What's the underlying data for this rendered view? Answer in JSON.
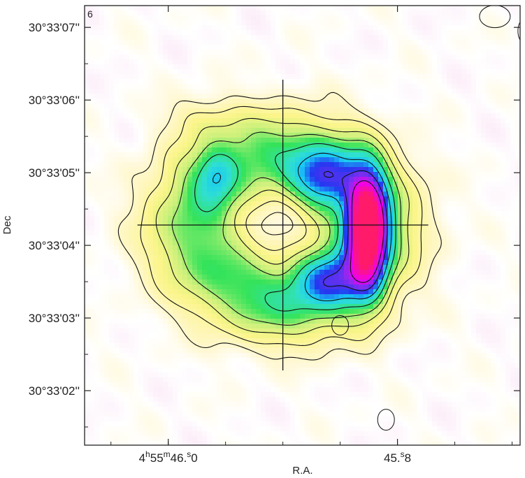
{
  "chart_data": {
    "type": "heatmap",
    "panel_label": "6",
    "xlabel": "R.A.",
    "ylabel": "Dec",
    "x_ticks": [
      {
        "value": 46.0,
        "label_parts": [
          "4",
          "h",
          "55",
          "m",
          "46.",
          "s",
          "0"
        ]
      },
      {
        "value": 45.8,
        "label_parts": [
          "45.",
          "s",
          "8"
        ]
      }
    ],
    "y_ticks": [
      {
        "value": 7,
        "label": "30°33'07''"
      },
      {
        "value": 6,
        "label": "30°33'06''"
      },
      {
        "value": 5,
        "label": "30°33'05''"
      },
      {
        "value": 4,
        "label": "30°33'04''"
      },
      {
        "value": 3,
        "label": "30°33'03''"
      },
      {
        "value": 2,
        "label": "30°33'02''"
      }
    ],
    "ylim_arcsec": [
      1.25,
      7.3
    ],
    "xlim_seconds": [
      46.073,
      45.693
    ],
    "crosshair": {
      "ra_s": 45.9,
      "dec_arcsec": 4.28
    },
    "components": [
      {
        "name": "ring",
        "ra_s": 45.9,
        "dec_arcsec": 4.28,
        "radius_arcsec": 0.97,
        "width_arcsec": 0.42,
        "peak": 0.34
      },
      {
        "name": "east-arc",
        "ra_s": 45.826,
        "dec_arcsec": 4.2,
        "sigma_ra_s": 0.012,
        "sigma_dec_arcsec": 0.55,
        "peak": 0.95
      },
      {
        "name": "arc-north",
        "ra_s": 45.865,
        "dec_arcsec": 4.9,
        "sigma_ra_s": 0.02,
        "sigma_dec_arcsec": 0.3,
        "peak": 0.35
      },
      {
        "name": "arc-south",
        "ra_s": 45.86,
        "dec_arcsec": 3.55,
        "sigma_ra_s": 0.02,
        "sigma_dec_arcsec": 0.25,
        "peak": 0.3
      },
      {
        "name": "west-clump",
        "ra_s": 45.958,
        "dec_arcsec": 4.95,
        "sigma_ra_s": 0.012,
        "sigma_dec_arcsec": 0.25,
        "peak": 0.18
      },
      {
        "name": "north-spur",
        "ra_s": 45.97,
        "dec_arcsec": 5.75,
        "sigma_ra_s": 0.025,
        "sigma_dec_arcsec": 0.22,
        "peak": 0.09
      },
      {
        "name": "south-ext",
        "ra_s": 45.88,
        "dec_arcsec": 2.95,
        "sigma_ra_s": 0.05,
        "sigma_dec_arcsec": 0.3,
        "peak": 0.06
      }
    ],
    "contour_levels": [
      0.06,
      0.12,
      0.2,
      0.28,
      0.38,
      0.5,
      0.65,
      0.8
    ],
    "negative_contour_level": -0.05,
    "colormap": [
      {
        "v": -0.1,
        "c": "#f6c9ec"
      },
      {
        "v": 0.0,
        "c": "#ffffff"
      },
      {
        "v": 0.06,
        "c": "#fff7cc"
      },
      {
        "v": 0.16,
        "c": "#fbf58a"
      },
      {
        "v": 0.26,
        "c": "#c8f07a"
      },
      {
        "v": 0.34,
        "c": "#34e35a"
      },
      {
        "v": 0.44,
        "c": "#30e0d0"
      },
      {
        "v": 0.52,
        "c": "#18c8f5"
      },
      {
        "v": 0.6,
        "c": "#2238f0"
      },
      {
        "v": 0.72,
        "c": "#8a2cf0"
      },
      {
        "v": 0.82,
        "c": "#f000f0"
      },
      {
        "v": 1.0,
        "c": "#ff1a6a"
      }
    ],
    "colors": {
      "frame": "#222222",
      "contour": "#111111",
      "negative_contour": "#3a3aee"
    }
  }
}
